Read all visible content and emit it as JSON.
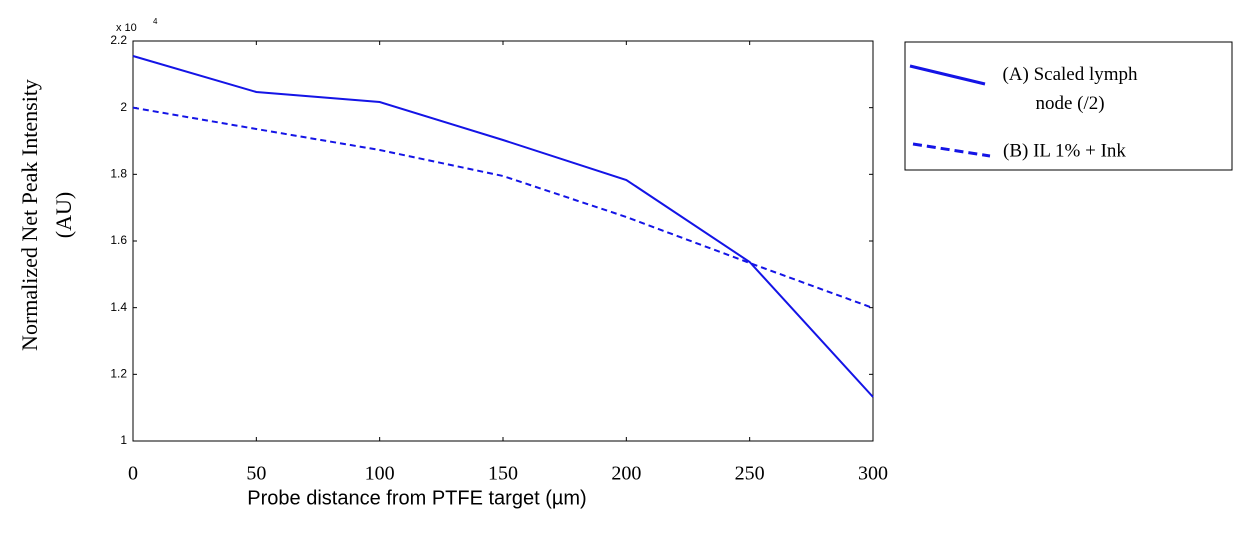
{
  "chart_data": {
    "type": "line",
    "y_label": "Normalized Net Peak Intensity",
    "y_label_unit": "(AU)",
    "x_label": "Probe distance from PTFE target (µm)",
    "y_multiplier": "x 10",
    "y_multiplier_exponent": "4",
    "x": [
      0,
      50,
      100,
      150,
      200,
      250,
      300
    ],
    "series": [
      {
        "name": "(A)  Scaled lymph node (/2)",
        "color": "#1414e6",
        "dash": "solid",
        "values": [
          2.155,
          2.047,
          2.017,
          1.903,
          1.783,
          1.537,
          1.132
        ]
      },
      {
        "name": "(B) IL 1% + Ink",
        "color": "#1414e6",
        "dash": "dashed",
        "values": [
          2.0,
          1.936,
          1.873,
          1.795,
          1.672,
          1.534,
          1.399
        ]
      }
    ],
    "xlim": [
      0,
      300
    ],
    "xticks": [
      0,
      50,
      100,
      150,
      200,
      250,
      300
    ],
    "ylim": [
      1,
      2.2
    ],
    "yticks": [
      1,
      1.2,
      1.4,
      1.6,
      1.8,
      2,
      2.2
    ],
    "grid": false,
    "legend": "right"
  }
}
